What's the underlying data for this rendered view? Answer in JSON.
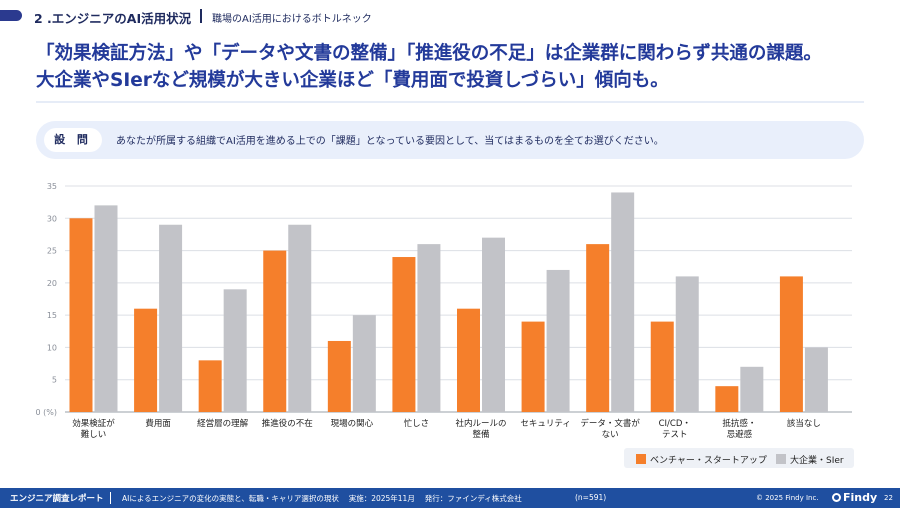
{
  "header": {
    "section": "2 .エンジニアのAI活用状況",
    "subtitle": "職場のAI活用におけるボトルネック"
  },
  "headline": {
    "line1": "「効果検証方法」や「データや文書の整備」「推進役の不足」は企業群に関わらず共通の課題。",
    "line2": "大企業やSIerなど規模が大きい企業ほど「費用面で投資しづらい」傾向も。"
  },
  "question": {
    "label": "設 問",
    "text": "あなたが所属する組織でAI活用を進める上での「課題」となっている要因として、当てはまるものを全てお選びください。"
  },
  "colors": {
    "orange": "#f57f2b",
    "gray": "#c2c3c8",
    "title": "#233a9a",
    "footer": "#1f4fa0"
  },
  "chart_data": {
    "type": "bar",
    "categories": [
      "効果検証が\n難しい",
      "費用面",
      "経営層の理解",
      "推進役の不在",
      "現場の関心",
      "忙しさ",
      "社内ルールの\n整備",
      "セキュリティ",
      "データ・文書が\nない",
      "CI/CD・\nテスト",
      "抵抗感・\n忌避感",
      "該当なし"
    ],
    "series": [
      {
        "name": "ベンチャー・スタートアップ",
        "values": [
          30,
          16,
          8,
          25,
          11,
          24,
          16,
          14,
          26,
          14,
          4,
          21
        ]
      },
      {
        "name": "大企業・SIer",
        "values": [
          32,
          29,
          19,
          29,
          15,
          26,
          27,
          22,
          34,
          21,
          7,
          10
        ]
      }
    ],
    "ylim": [
      0,
      35
    ],
    "yticks": [
      0,
      5,
      10,
      15,
      20,
      25,
      30,
      35
    ],
    "ytick_labels": [
      "0 (%)",
      "5",
      "10",
      "15",
      "20",
      "25",
      "30",
      "35"
    ],
    "grid": true,
    "legend": "bottom-right"
  },
  "footer": {
    "title": "エンジニア調査レポート",
    "description": "AIによるエンジニアの変化の実態と、転職・キャリア選択の現状　 実施：2025年11月　 発行：ファインディ株式会社",
    "sample": "(n=591)",
    "copyright": "© 2025 Findy Inc.",
    "brand": "Findy",
    "page": "22"
  }
}
